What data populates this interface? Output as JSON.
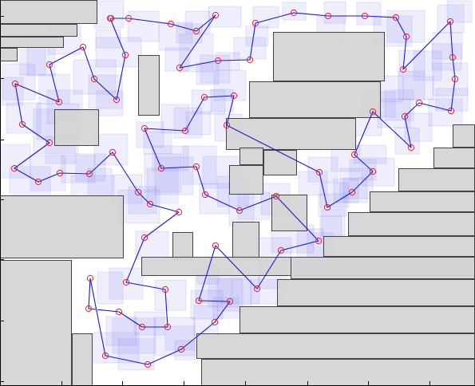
{
  "colors": {
    "obstacle_fill": "#d4d4d4",
    "obstacle_stroke": "#444444",
    "cell_fill": "#8a8af0",
    "path_line": "#1a1acc",
    "node_marker": "#e8202a",
    "axis": "#000000",
    "background": "#ffffff"
  },
  "chart_data": {
    "type": "path-planning-map",
    "title": "",
    "xlim": [
      0,
      595
    ],
    "ylim": [
      0,
      484
    ],
    "obstacles": [
      [
        0,
        0,
        122,
        30
      ],
      [
        0,
        30,
        97,
        46
      ],
      [
        0,
        46,
        80,
        60
      ],
      [
        0,
        60,
        22,
        77
      ],
      [
        342,
        40,
        482,
        102
      ],
      [
        173,
        69,
        200,
        145
      ],
      [
        312,
        102,
        477,
        148
      ],
      [
        68,
        137,
        124,
        183
      ],
      [
        283,
        148,
        446,
        188
      ],
      [
        567,
        156,
        595,
        185
      ],
      [
        300,
        185,
        330,
        207
      ],
      [
        330,
        188,
        372,
        220
      ],
      [
        543,
        185,
        595,
        211
      ],
      [
        287,
        207,
        330,
        244
      ],
      [
        499,
        211,
        595,
        240
      ],
      [
        0,
        245,
        155,
        324
      ],
      [
        340,
        244,
        385,
        290
      ],
      [
        463,
        240,
        595,
        266
      ],
      [
        436,
        266,
        595,
        296
      ],
      [
        291,
        278,
        325,
        326
      ],
      [
        216,
        291,
        242,
        326
      ],
      [
        405,
        296,
        595,
        322
      ],
      [
        177,
        322,
        595,
        346
      ],
      [
        0,
        326,
        90,
        484
      ],
      [
        364,
        322,
        595,
        350
      ],
      [
        347,
        350,
        595,
        384
      ],
      [
        300,
        384,
        595,
        418
      ],
      [
        90,
        418,
        116,
        484
      ],
      [
        246,
        418,
        595,
        450
      ],
      [
        252,
        450,
        595,
        484
      ]
    ],
    "cells": [
      [
        111,
        94,
        153,
        136
      ],
      [
        59,
        113,
        103,
        155
      ],
      [
        160,
        14,
        199,
        52
      ],
      [
        38,
        195,
        82,
        239
      ],
      [
        118,
        1,
        155,
        35
      ],
      [
        92,
        75,
        145,
        118
      ],
      [
        120,
        47,
        177,
        84
      ],
      [
        121,
        114,
        154,
        145
      ],
      [
        120,
        37,
        151,
        60
      ],
      [
        42,
        137,
        98,
        193
      ],
      [
        60,
        33,
        101,
        68
      ],
      [
        46,
        130,
        99,
        175
      ],
      [
        77,
        195,
        119,
        229
      ],
      [
        25,
        49,
        57,
        94
      ],
      [
        89,
        220,
        143,
        248
      ],
      [
        110,
        211,
        140,
        246
      ],
      [
        194,
        197,
        242,
        244
      ],
      [
        229,
        183,
        271,
        231
      ],
      [
        148,
        238,
        200,
        280
      ],
      [
        181,
        193,
        227,
        241
      ],
      [
        191,
        183,
        236,
        214
      ],
      [
        184,
        211,
        223,
        255
      ],
      [
        170,
        290,
        211,
        325
      ],
      [
        137,
        336,
        179,
        375
      ],
      [
        122,
        341,
        154,
        381
      ],
      [
        141,
        399,
        195,
        443
      ],
      [
        193,
        398,
        244,
        446
      ],
      [
        219,
        427,
        245,
        451
      ],
      [
        194,
        351,
        233,
        389
      ],
      [
        117,
        417,
        174,
        455
      ],
      [
        168,
        391,
        206,
        420
      ],
      [
        133,
        397,
        171,
        433
      ],
      [
        148,
        425,
        193,
        464
      ],
      [
        207,
        409,
        244,
        439
      ],
      [
        243,
        383,
        273,
        421
      ],
      [
        261,
        349,
        304,
        385
      ],
      [
        239,
        364,
        279,
        400
      ],
      [
        245,
        337,
        290,
        380
      ],
      [
        247,
        333,
        274,
        356
      ],
      [
        272,
        350,
        315,
        390
      ],
      [
        267,
        373,
        299,
        399
      ],
      [
        291,
        347,
        325,
        381
      ],
      [
        314,
        350,
        354,
        381
      ],
      [
        324,
        326,
        359,
        362
      ],
      [
        319,
        298,
        365,
        327
      ],
      [
        340,
        282,
        393,
        317
      ],
      [
        372,
        287,
        405,
        324
      ],
      [
        385,
        292,
        418,
        325
      ],
      [
        401,
        271,
        428,
        300
      ],
      [
        403,
        262,
        432,
        296
      ],
      [
        399,
        243,
        434,
        271
      ],
      [
        430,
        223,
        460,
        254
      ],
      [
        418,
        224,
        449,
        254
      ],
      [
        438,
        200,
        471,
        226
      ],
      [
        443,
        182,
        484,
        205
      ],
      [
        444,
        141,
        478,
        170
      ],
      [
        454,
        115,
        495,
        147
      ],
      [
        482,
        113,
        518,
        151
      ],
      [
        505,
        96,
        543,
        125
      ],
      [
        507,
        142,
        541,
        177
      ],
      [
        495,
        160,
        525,
        193
      ],
      [
        473,
        124,
        514,
        160
      ],
      [
        477,
        95,
        505,
        128
      ],
      [
        518,
        64,
        553,
        101
      ],
      [
        542,
        41,
        579,
        74
      ],
      [
        542,
        79,
        586,
        120
      ],
      [
        546,
        111,
        586,
        139
      ],
      [
        537,
        124,
        579,
        158
      ],
      [
        548,
        6,
        581,
        41
      ],
      [
        541,
        55,
        578,
        88
      ],
      [
        560,
        1,
        591,
        28
      ],
      [
        485,
        13,
        532,
        53
      ],
      [
        468,
        20,
        516,
        58
      ],
      [
        500,
        63,
        532,
        95
      ],
      [
        499,
        89,
        532,
        125
      ],
      [
        406,
        2,
        433,
        29
      ],
      [
        354,
        3,
        383,
        25
      ],
      [
        397,
        20,
        432,
        51
      ],
      [
        447,
        3,
        477,
        31
      ],
      [
        317,
        8,
        349,
        35
      ],
      [
        308,
        33,
        336,
        58
      ],
      [
        293,
        47,
        333,
        74
      ],
      [
        270,
        66,
        300,
        88
      ],
      [
        251,
        69,
        288,
        104
      ],
      [
        246,
        79,
        274,
        106
      ],
      [
        225,
        43,
        267,
        90
      ],
      [
        207,
        60,
        237,
        89
      ],
      [
        199,
        28,
        241,
        63
      ],
      [
        221,
        30,
        253,
        54
      ],
      [
        232,
        14,
        263,
        42
      ],
      [
        261,
        8,
        302,
        34
      ],
      [
        268,
        88,
        308,
        126
      ],
      [
        264,
        112,
        292,
        140
      ],
      [
        240,
        113,
        282,
        143
      ],
      [
        218,
        135,
        253,
        173
      ],
      [
        202,
        131,
        237,
        167
      ],
      [
        171,
        153,
        205,
        185
      ],
      [
        180,
        165,
        215,
        193
      ],
      [
        233,
        140,
        264,
        169
      ],
      [
        269,
        143,
        303,
        177
      ],
      [
        254,
        196,
        302,
        236
      ],
      [
        272,
        221,
        311,
        259
      ],
      [
        250,
        230,
        287,
        268
      ],
      [
        287,
        240,
        318,
        283
      ],
      [
        298,
        241,
        338,
        275
      ],
      [
        327,
        230,
        363,
        269
      ],
      [
        374,
        215,
        410,
        245
      ],
      [
        386,
        197,
        423,
        228
      ],
      [
        415,
        183,
        451,
        215
      ],
      [
        401,
        229,
        437,
        260
      ],
      [
        426,
        211,
        467,
        249
      ],
      [
        453,
        198,
        494,
        233
      ],
      [
        8,
        129,
        51,
        167
      ],
      [
        0,
        181,
        38,
        223
      ],
      [
        12,
        209,
        63,
        246
      ],
      [
        57,
        171,
        94,
        205
      ],
      [
        95,
        193,
        132,
        227
      ],
      [
        118,
        168,
        160,
        207
      ],
      [
        141,
        219,
        178,
        255
      ],
      [
        161,
        234,
        196,
        268
      ],
      [
        3,
        80,
        44,
        125
      ],
      [
        0,
        97,
        29,
        132
      ],
      [
        34,
        59,
        69,
        95
      ],
      [
        49,
        93,
        87,
        130
      ]
    ],
    "path": [
      [
        138,
        23
      ],
      [
        157,
        69
      ],
      [
        146,
        125
      ],
      [
        118,
        99
      ],
      [
        104,
        59
      ],
      [
        62,
        81
      ],
      [
        74,
        128
      ],
      [
        19,
        105
      ],
      [
        28,
        156
      ],
      [
        62,
        179
      ],
      [
        18,
        211
      ],
      [
        48,
        228
      ],
      [
        75,
        217
      ],
      [
        112,
        218
      ],
      [
        141,
        191
      ],
      [
        173,
        241
      ],
      [
        188,
        256
      ],
      [
        224,
        266
      ],
      [
        181,
        298
      ],
      [
        158,
        354
      ],
      [
        207,
        363
      ],
      [
        210,
        410
      ],
      [
        178,
        410
      ],
      [
        149,
        391
      ],
      [
        111,
        387
      ],
      [
        113,
        349
      ],
      [
        132,
        446
      ],
      [
        185,
        457
      ],
      [
        227,
        438
      ],
      [
        269,
        404
      ],
      [
        288,
        378
      ],
      [
        249,
        377
      ],
      [
        270,
        308
      ],
      [
        322,
        362
      ],
      [
        352,
        314
      ],
      [
        399,
        302
      ],
      [
        346,
        246
      ],
      [
        300,
        264
      ],
      [
        257,
        244
      ],
      [
        246,
        209
      ],
      [
        202,
        211
      ],
      [
        181,
        161
      ],
      [
        232,
        164
      ],
      [
        256,
        122
      ],
      [
        293,
        120
      ],
      [
        284,
        157
      ],
      [
        400,
        216
      ],
      [
        410,
        260
      ],
      [
        441,
        241
      ],
      [
        467,
        215
      ],
      [
        444,
        194
      ],
      [
        467,
        140
      ],
      [
        515,
        185
      ],
      [
        507,
        146
      ],
      [
        525,
        129
      ],
      [
        565,
        139
      ],
      [
        570,
        99
      ],
      [
        567,
        72
      ],
      [
        564,
        27
      ],
      [
        505,
        87
      ],
      [
        509,
        46
      ],
      [
        496,
        22
      ],
      [
        457,
        20
      ],
      [
        411,
        20
      ],
      [
        368,
        16
      ],
      [
        320,
        29
      ],
      [
        313,
        75
      ],
      [
        273,
        76
      ],
      [
        225,
        85
      ],
      [
        270,
        19
      ],
      [
        246,
        39
      ],
      [
        214,
        30
      ],
      [
        161,
        23
      ],
      [
        139,
        23
      ]
    ],
    "axis_ticks_x": [
      0,
      77,
      153,
      230,
      307,
      385,
      461,
      538
    ],
    "axis_ticks_y": [
      20,
      98,
      175,
      250,
      325,
      402,
      478
    ]
  }
}
